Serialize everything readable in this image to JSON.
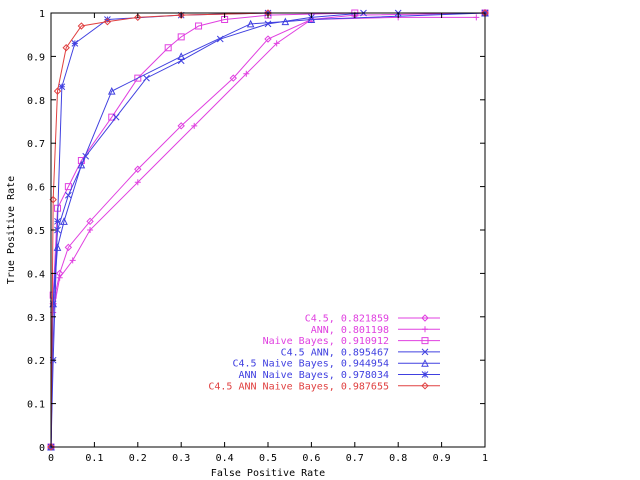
{
  "chart_data": {
    "type": "line",
    "title": "",
    "xlabel": "False Positive Rate",
    "ylabel": "True Positive Rate",
    "xlim": [
      0,
      1
    ],
    "ylim": [
      0,
      1
    ],
    "xticks": [
      "0",
      "0.1",
      "0.2",
      "0.3",
      "0.4",
      "0.5",
      "0.6",
      "0.7",
      "0.8",
      "0.9",
      "1"
    ],
    "yticks": [
      "0",
      "0.1",
      "0.2",
      "0.3",
      "0.4",
      "0.5",
      "0.6",
      "0.7",
      "0.8",
      "0.9",
      "1"
    ],
    "grid": false,
    "legend_position": "bottom-right",
    "series": [
      {
        "name": "C4.5, 0.821859",
        "color": "#e040e0",
        "marker": "diamond",
        "points": [
          [
            0,
            0
          ],
          [
            0.005,
            0.33
          ],
          [
            0.02,
            0.4
          ],
          [
            0.04,
            0.46
          ],
          [
            0.09,
            0.52
          ],
          [
            0.2,
            0.64
          ],
          [
            0.3,
            0.74
          ],
          [
            0.42,
            0.85
          ],
          [
            0.5,
            0.94
          ],
          [
            0.6,
            0.985
          ],
          [
            0.7,
            0.995
          ],
          [
            1,
            1
          ]
        ]
      },
      {
        "name": "ANN, 0.801198",
        "color": "#e040e0",
        "marker": "plus",
        "points": [
          [
            0,
            0
          ],
          [
            0.005,
            0.31
          ],
          [
            0.02,
            0.39
          ],
          [
            0.05,
            0.43
          ],
          [
            0.09,
            0.5
          ],
          [
            0.2,
            0.61
          ],
          [
            0.33,
            0.74
          ],
          [
            0.45,
            0.86
          ],
          [
            0.52,
            0.93
          ],
          [
            0.6,
            0.985
          ],
          [
            0.8,
            0.99
          ],
          [
            0.98,
            0.99
          ]
        ]
      },
      {
        "name": "Naive Bayes, 0.910912",
        "color": "#e040e0",
        "marker": "square",
        "points": [
          [
            0,
            0
          ],
          [
            0.005,
            0.35
          ],
          [
            0.015,
            0.55
          ],
          [
            0.04,
            0.6
          ],
          [
            0.07,
            0.66
          ],
          [
            0.14,
            0.76
          ],
          [
            0.2,
            0.85
          ],
          [
            0.27,
            0.92
          ],
          [
            0.3,
            0.945
          ],
          [
            0.34,
            0.97
          ],
          [
            0.4,
            0.985
          ],
          [
            0.5,
            0.995
          ],
          [
            0.7,
            1
          ],
          [
            1,
            1
          ]
        ]
      },
      {
        "name": "C4.5 ANN, 0.895467",
        "color": "#4040e0",
        "marker": "x",
        "points": [
          [
            0,
            0
          ],
          [
            0.005,
            0.33
          ],
          [
            0.015,
            0.5
          ],
          [
            0.04,
            0.58
          ],
          [
            0.08,
            0.67
          ],
          [
            0.15,
            0.76
          ],
          [
            0.22,
            0.85
          ],
          [
            0.3,
            0.89
          ],
          [
            0.39,
            0.94
          ],
          [
            0.5,
            0.975
          ],
          [
            0.6,
            0.99
          ],
          [
            0.72,
            1
          ],
          [
            0.8,
            1
          ],
          [
            1,
            1
          ]
        ]
      },
      {
        "name": "C4.5 Naive Bayes, 0.944954",
        "color": "#4040e0",
        "marker": "triangle",
        "points": [
          [
            0,
            0
          ],
          [
            0.005,
            0.33
          ],
          [
            0.015,
            0.46
          ],
          [
            0.03,
            0.52
          ],
          [
            0.07,
            0.65
          ],
          [
            0.14,
            0.82
          ],
          [
            0.3,
            0.9
          ],
          [
            0.46,
            0.975
          ],
          [
            0.54,
            0.98
          ],
          [
            0.6,
            0.985
          ],
          [
            1,
            1
          ]
        ]
      },
      {
        "name": "ANN Naive Bayes, 0.978034",
        "color": "#4040e0",
        "marker": "star",
        "points": [
          [
            0,
            0
          ],
          [
            0.005,
            0.2
          ],
          [
            0.015,
            0.52
          ],
          [
            0.025,
            0.83
          ],
          [
            0.055,
            0.93
          ],
          [
            0.13,
            0.985
          ],
          [
            0.3,
            0.995
          ],
          [
            0.5,
            1
          ],
          [
            1,
            1
          ]
        ]
      },
      {
        "name": "C4.5 ANN Naive Bayes, 0.987655",
        "color": "#e04040",
        "marker": "diamond",
        "points": [
          [
            0,
            0
          ],
          [
            0.005,
            0.57
          ],
          [
            0.015,
            0.82
          ],
          [
            0.035,
            0.92
          ],
          [
            0.07,
            0.97
          ],
          [
            0.13,
            0.98
          ],
          [
            0.2,
            0.99
          ],
          [
            0.3,
            0.995
          ],
          [
            0.5,
            1
          ],
          [
            1,
            1
          ]
        ]
      }
    ]
  }
}
